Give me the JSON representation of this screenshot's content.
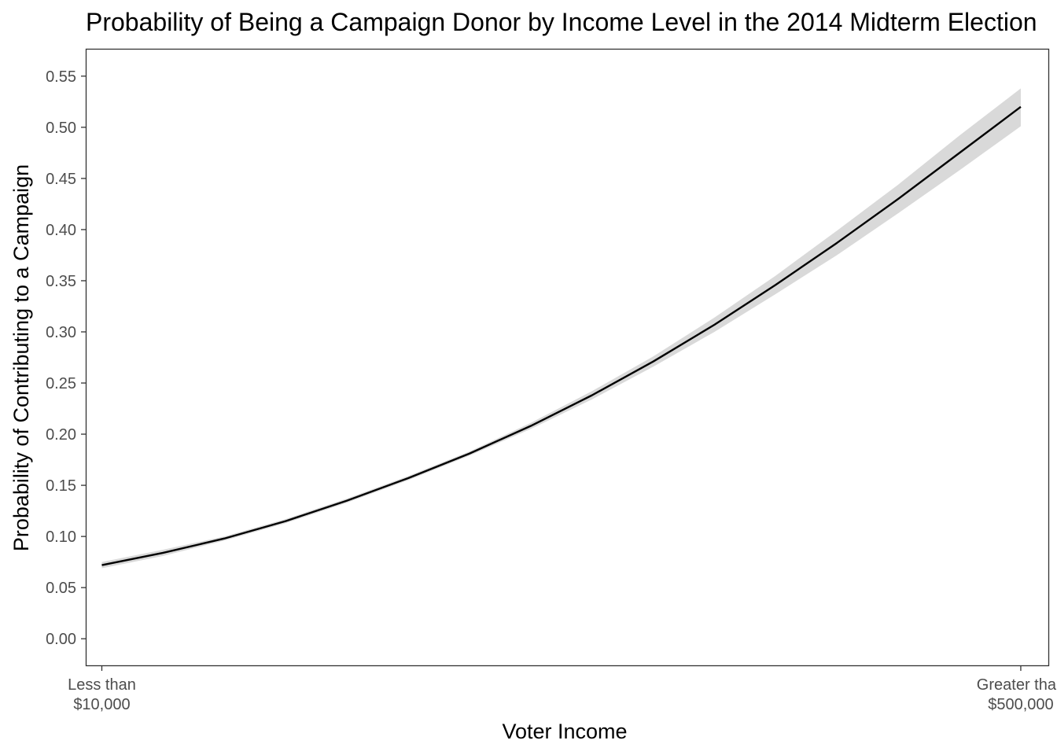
{
  "chart_data": {
    "type": "line",
    "title": "Probability of Being a Campaign Donor by Income Level in the 2014 Midterm Election",
    "xlabel": "Voter Income",
    "ylabel": "Probability of Contributing to a Campaign",
    "x_tick_labels": [
      [
        "Less than",
        "$10,000"
      ],
      [
        "Greater than",
        "$500,000"
      ]
    ],
    "x": [
      1,
      2,
      3,
      4,
      5,
      6,
      7,
      8,
      9,
      10,
      11,
      12,
      13,
      14,
      15,
      16
    ],
    "xlim": [
      0.75,
      16.45
    ],
    "ylim": [
      -0.026,
      0.576
    ],
    "y_ticks": [
      0.0,
      0.05,
      0.1,
      0.15,
      0.2,
      0.25,
      0.3,
      0.35,
      0.4,
      0.45,
      0.5,
      0.55
    ],
    "y_tick_labels": [
      "0.00",
      "0.05",
      "0.10",
      "0.15",
      "0.20",
      "0.25",
      "0.30",
      "0.35",
      "0.40",
      "0.45",
      "0.50",
      "0.55"
    ],
    "series": [
      {
        "values": [
          0.072,
          0.084,
          0.098,
          0.115,
          0.135,
          0.157,
          0.181,
          0.208,
          0.238,
          0.271,
          0.307,
          0.346,
          0.387,
          0.43,
          0.475,
          0.52
        ],
        "ci_lower": [
          0.069,
          0.081,
          0.096,
          0.113,
          0.133,
          0.155,
          0.179,
          0.205,
          0.234,
          0.266,
          0.3,
          0.337,
          0.375,
          0.416,
          0.458,
          0.501
        ],
        "ci_upper": [
          0.075,
          0.087,
          0.1,
          0.117,
          0.137,
          0.159,
          0.183,
          0.211,
          0.242,
          0.276,
          0.314,
          0.355,
          0.399,
          0.444,
          0.492,
          0.538
        ],
        "color": "#000000",
        "band_color": "#d9d9d9"
      }
    ],
    "grid": false,
    "legend": "none",
    "panel_border_color": "#333333"
  }
}
